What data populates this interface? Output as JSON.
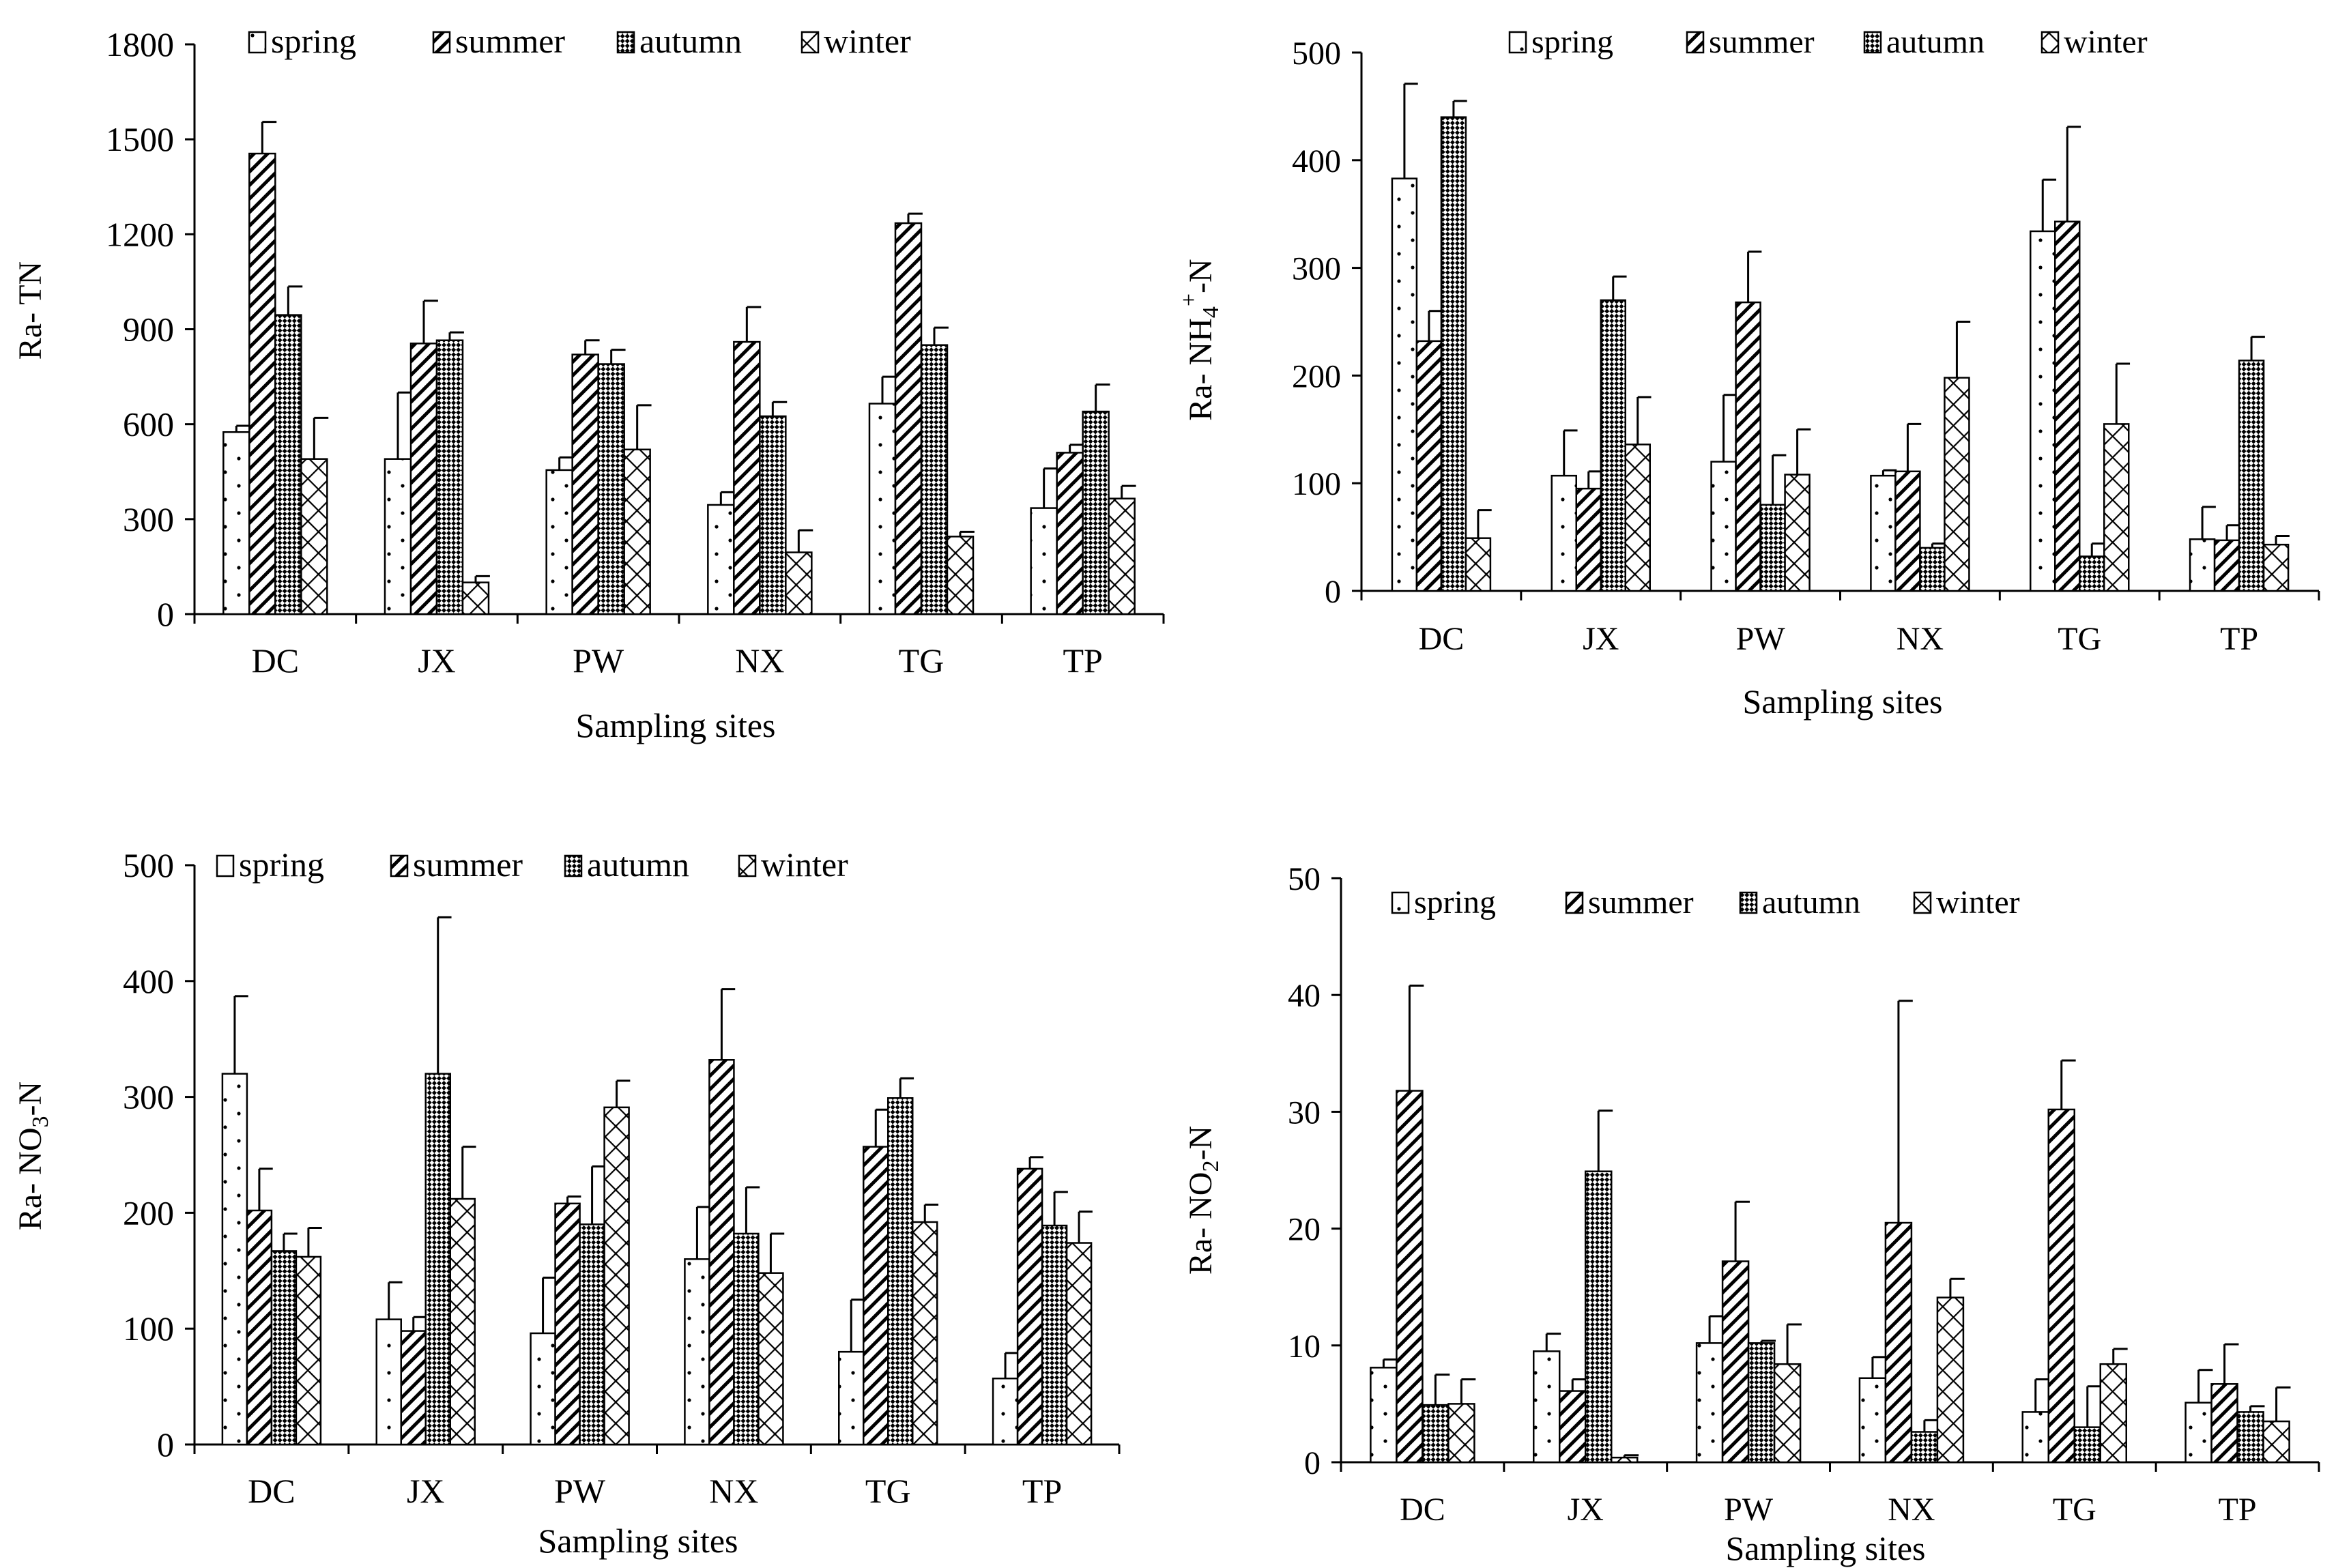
{
  "colors": {
    "ink": "#000000",
    "fill": "#ffffff"
  },
  "chart_data": [
    {
      "id": "tn",
      "type": "bar",
      "title": "",
      "ylabel": "Ra- TN",
      "xlabel": "Sampling sites",
      "ylim": [
        0,
        1800
      ],
      "yticks": [
        "0",
        "300",
        "600",
        "900",
        "1200",
        "1500",
        "1800"
      ],
      "categories": [
        "DC",
        "JX",
        "PW",
        "NX",
        "TG",
        "TP"
      ],
      "legend": [
        "spring",
        "summer",
        "autumn",
        "winter"
      ],
      "series": [
        {
          "name": "spring",
          "values": [
            575,
            490,
            455,
            345,
            665,
            335
          ],
          "errors": [
            20,
            210,
            40,
            40,
            85,
            125
          ]
        },
        {
          "name": "summer",
          "values": [
            1455,
            855,
            820,
            860,
            1235,
            510
          ],
          "errors": [
            100,
            135,
            45,
            110,
            30,
            25
          ]
        },
        {
          "name": "autumn",
          "values": [
            945,
            865,
            790,
            625,
            850,
            640
          ],
          "errors": [
            90,
            25,
            45,
            45,
            55,
            85
          ]
        },
        {
          "name": "winter",
          "values": [
            490,
            100,
            520,
            195,
            245,
            365
          ],
          "errors": [
            130,
            20,
            140,
            70,
            15,
            40
          ]
        }
      ]
    },
    {
      "id": "nh4",
      "type": "bar",
      "title": "",
      "ylabel": "Ra- NH4+-N",
      "ylabel_parts": {
        "prefix": "Ra- NH",
        "sub": "4",
        "sup": "+",
        "suffix": "-N"
      },
      "xlabel": "Sampling sites",
      "ylim": [
        0,
        500
      ],
      "yticks": [
        "0",
        "100",
        "200",
        "300",
        "400",
        "500"
      ],
      "categories": [
        "DC",
        "JX",
        "PW",
        "NX",
        "TG",
        "TP"
      ],
      "legend": [
        "spring",
        "summer",
        "autumn",
        "winter"
      ],
      "series": [
        {
          "name": "spring",
          "values": [
            383,
            107,
            120,
            107,
            334,
            48
          ],
          "errors": [
            88,
            42,
            62,
            5,
            48,
            30
          ]
        },
        {
          "name": "summer",
          "values": [
            232,
            95,
            268,
            111,
            343,
            47
          ],
          "errors": [
            28,
            16,
            47,
            44,
            88,
            14
          ]
        },
        {
          "name": "autumn",
          "values": [
            440,
            270,
            80,
            40,
            32,
            214
          ],
          "errors": [
            15,
            22,
            46,
            4,
            12,
            22
          ]
        },
        {
          "name": "winter",
          "values": [
            49,
            136,
            108,
            198,
            155,
            43
          ],
          "errors": [
            26,
            44,
            42,
            52,
            56,
            8
          ]
        }
      ]
    },
    {
      "id": "no3",
      "type": "bar",
      "title": "",
      "ylabel": "Ra- NO3--N",
      "ylabel_parts": {
        "prefix": "Ra- NO",
        "sub": "3",
        "sup": "",
        "suffix": "-N"
      },
      "xlabel": "Sampling sites",
      "ylim": [
        0,
        500
      ],
      "yticks": [
        "0",
        "100",
        "200",
        "300",
        "400",
        "500"
      ],
      "categories": [
        "DC",
        "JX",
        "PW",
        "NX",
        "TG",
        "TP"
      ],
      "legend": [
        "spring",
        "summer",
        "autumn",
        "winter"
      ],
      "series": [
        {
          "name": "spring",
          "values": [
            320,
            108,
            96,
            160,
            80,
            57
          ],
          "errors": [
            67,
            32,
            48,
            45,
            45,
            22
          ]
        },
        {
          "name": "summer",
          "values": [
            202,
            98,
            208,
            332,
            257,
            238
          ],
          "errors": [
            36,
            12,
            6,
            61,
            32,
            10
          ]
        },
        {
          "name": "autumn",
          "values": [
            167,
            320,
            190,
            182,
            299,
            189
          ],
          "errors": [
            15,
            135,
            50,
            40,
            17,
            29
          ]
        },
        {
          "name": "winter",
          "values": [
            162,
            212,
            291,
            148,
            192,
            174
          ],
          "errors": [
            25,
            45,
            23,
            34,
            15,
            27
          ]
        }
      ]
    },
    {
      "id": "no2",
      "type": "bar",
      "title": "",
      "ylabel": "Ra- NO2--N",
      "ylabel_parts": {
        "prefix": "Ra- NO",
        "sub": "2",
        "sup": "",
        "suffix": "-N"
      },
      "xlabel": "Sampling sites",
      "ylim": [
        0,
        50
      ],
      "yticks": [
        "0",
        "10",
        "20",
        "30",
        "40",
        "50"
      ],
      "categories": [
        "DC",
        "JX",
        "PW",
        "NX",
        "TG",
        "TP"
      ],
      "legend": [
        "spring",
        "summer",
        "autumn",
        "winter"
      ],
      "series": [
        {
          "name": "spring",
          "values": [
            8.1,
            9.5,
            10.2,
            7.2,
            4.3,
            5.1
          ],
          "errors": [
            0.7,
            1.5,
            2.3,
            1.8,
            2.8,
            2.8
          ]
        },
        {
          "name": "summer",
          "values": [
            31.8,
            6.1,
            17.2,
            20.5,
            30.2,
            6.7
          ],
          "errors": [
            9.0,
            1.0,
            5.1,
            19.0,
            4.2,
            3.4
          ]
        },
        {
          "name": "autumn",
          "values": [
            4.9,
            24.9,
            10.2,
            2.6,
            3.0,
            4.3
          ],
          "errors": [
            2.6,
            5.2,
            0.2,
            1.0,
            3.5,
            0.5
          ]
        },
        {
          "name": "winter",
          "values": [
            5.0,
            0.4,
            8.4,
            14.1,
            8.4,
            3.5
          ],
          "errors": [
            2.1,
            0.2,
            3.4,
            1.6,
            1.3,
            2.9
          ]
        }
      ]
    }
  ]
}
